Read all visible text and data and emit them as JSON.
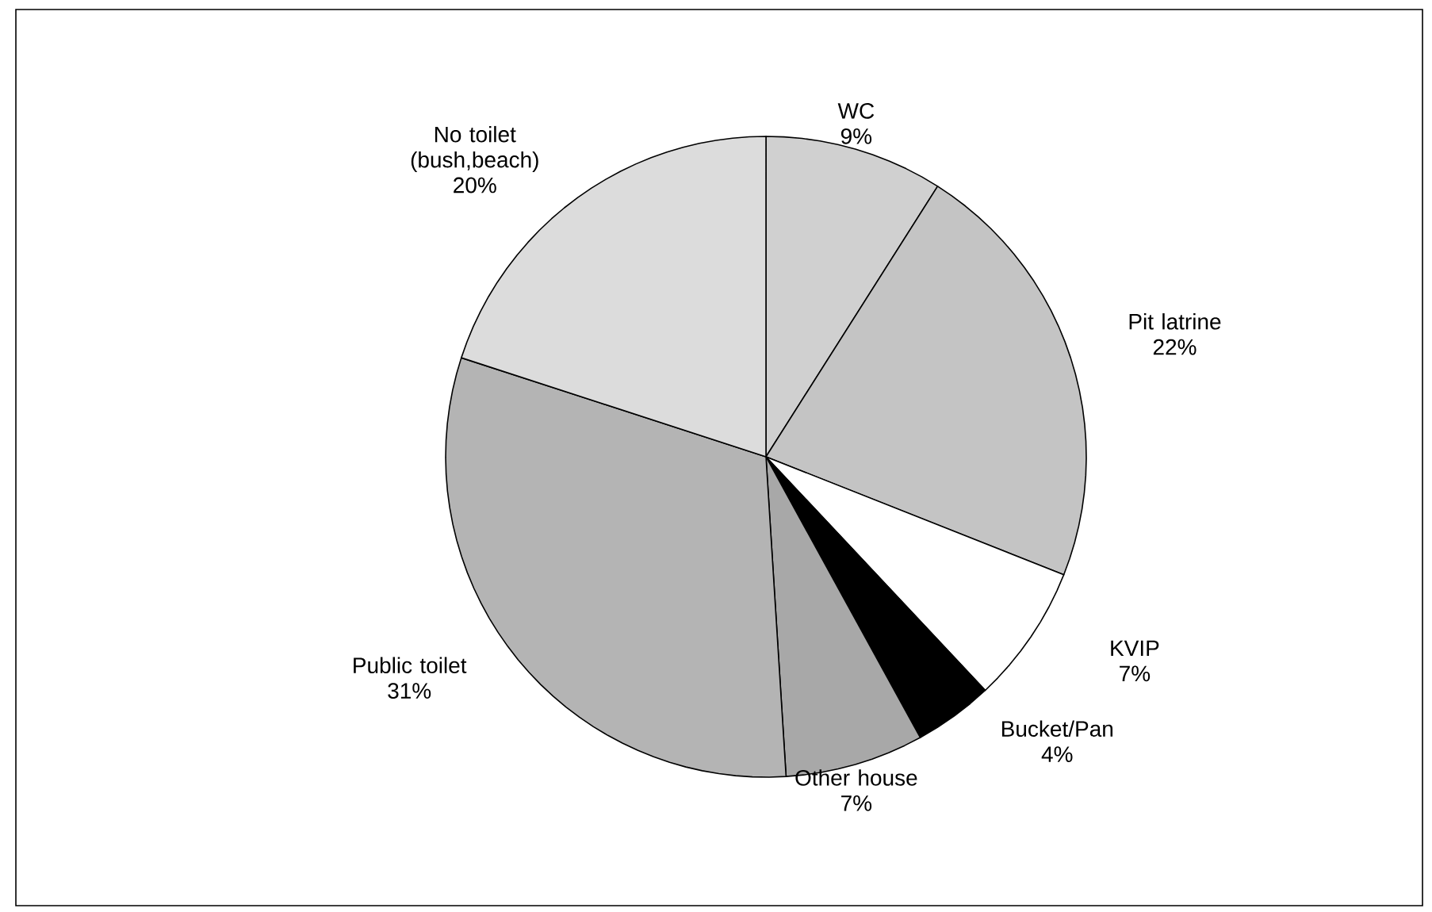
{
  "chart_data": {
    "type": "pie",
    "categories": [
      "WC",
      "Pit latrine",
      "KVIP",
      "Bucket/Pan",
      "Other house",
      "Public toilet",
      "No toilet (bush,beach)"
    ],
    "values": [
      9,
      22,
      7,
      4,
      7,
      31,
      20
    ],
    "value_labels": [
      "9%",
      "22%",
      "7%",
      "4%",
      "7%",
      "31%",
      "20%"
    ],
    "colors": [
      "#d0d0d0",
      "#c4c4c4",
      "#ffffff",
      "#000000",
      "#a8a8a8",
      "#b4b4b4",
      "#dcdcdc"
    ]
  }
}
